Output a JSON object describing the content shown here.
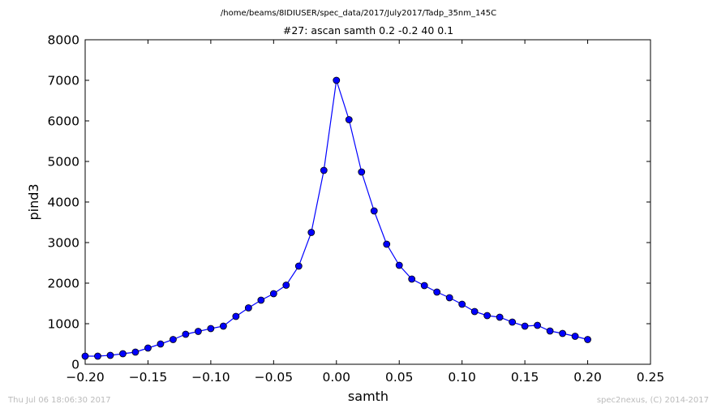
{
  "chart_data": {
    "type": "line",
    "supertitle": "/home/beams/8IDIUSER/spec_data/2017/July2017/Tadp_35nm_145C",
    "title": "#27: ascan  samth 0.2 -0.2  40 0.1",
    "xlabel": "samth",
    "ylabel": "pind3",
    "xlim": [
      -0.2,
      0.25
    ],
    "ylim": [
      0,
      8000
    ],
    "xticks": [
      -0.2,
      -0.15,
      -0.1,
      -0.05,
      0.0,
      0.05,
      0.1,
      0.15,
      0.2,
      0.25
    ],
    "xtick_labels": [
      "−0.20",
      "−0.15",
      "−0.10",
      "−0.05",
      "0.00",
      "0.05",
      "0.10",
      "0.15",
      "0.20",
      "0.25"
    ],
    "yticks": [
      0,
      1000,
      2000,
      3000,
      4000,
      5000,
      6000,
      7000,
      8000
    ],
    "ytick_labels": [
      "0",
      "1000",
      "2000",
      "3000",
      "4000",
      "5000",
      "6000",
      "7000",
      "8000"
    ],
    "grid": false,
    "series": [
      {
        "color": "#0000ff",
        "marker": "circle",
        "x": [
          -0.2,
          -0.19,
          -0.18,
          -0.17,
          -0.16,
          -0.15,
          -0.14,
          -0.13,
          -0.12,
          -0.11,
          -0.1,
          -0.09,
          -0.08,
          -0.07,
          -0.06,
          -0.05,
          -0.04,
          -0.03,
          -0.02,
          -0.01,
          0.0,
          0.01,
          0.02,
          0.03,
          0.04,
          0.05,
          0.06,
          0.07,
          0.08,
          0.09,
          0.1,
          0.11,
          0.12,
          0.13,
          0.14,
          0.15,
          0.16,
          0.17,
          0.18,
          0.19,
          0.2
        ],
        "y": [
          200,
          200,
          220,
          260,
          300,
          400,
          500,
          610,
          740,
          810,
          880,
          940,
          1180,
          1390,
          1580,
          1740,
          1950,
          2420,
          3250,
          4780,
          7000,
          6030,
          4740,
          3780,
          2960,
          2440,
          2100,
          1940,
          1780,
          1640,
          1480,
          1300,
          1200,
          1160,
          1040,
          940,
          960,
          820,
          760,
          690,
          610
        ]
      }
    ]
  },
  "footer": {
    "timestamp": "Thu Jul 06 18:06:30 2017",
    "credit": "spec2nexus, (C) 2014-2017"
  }
}
